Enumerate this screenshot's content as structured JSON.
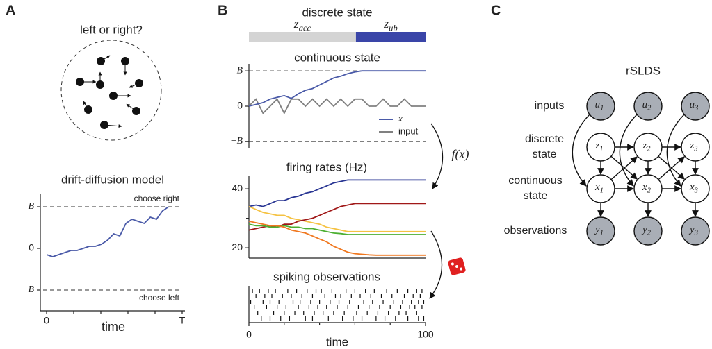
{
  "panel_a": {
    "label": "A",
    "title": "left or right?",
    "chart": {
      "type": "line",
      "title": "drift-diffusion model",
      "xlabel": "time",
      "x": [
        0,
        0.045,
        0.09,
        0.135,
        0.18,
        0.225,
        0.27,
        0.315,
        0.36,
        0.405,
        0.45,
        0.495,
        0.54,
        0.585,
        0.63,
        0.675,
        0.72,
        0.765,
        0.81,
        0.855,
        0.9
      ],
      "values": [
        -0.15,
        -0.2,
        -0.15,
        -0.1,
        -0.05,
        -0.05,
        0.0,
        0.05,
        0.05,
        0.1,
        0.2,
        0.35,
        0.3,
        0.6,
        0.7,
        0.65,
        0.6,
        0.75,
        0.7,
        0.9,
        1.0
      ],
      "color": "#4a5aa8",
      "xlim": [
        0,
        1
      ],
      "ylim": [
        -1.5,
        1.3
      ],
      "xticks": [
        {
          "value": 0,
          "label": "0"
        },
        {
          "value": 1,
          "label": "T"
        }
      ],
      "xminor": [
        0.2,
        0.4,
        0.6,
        0.8
      ],
      "yticks": [
        {
          "value": 1,
          "label": "B"
        },
        0,
        {
          "value": -1,
          "label": "−B"
        }
      ],
      "annotations": [
        {
          "text": "choose right",
          "y": 1
        },
        {
          "text": "choose left",
          "y": -1
        }
      ]
    }
  },
  "panel_b": {
    "label": "B",
    "f_label": "f(x)",
    "discrete": {
      "title": "discrete state",
      "xlim": [
        0,
        100
      ],
      "segments": [
        {
          "label": {
            "base": "z",
            "sub": "acc"
          },
          "start": 0,
          "end": 60.6,
          "color": "#d4d4d4"
        },
        {
          "label": {
            "base": "z",
            "sub": "ub"
          },
          "start": 60.6,
          "end": 100,
          "color": "#3a45a8"
        }
      ]
    },
    "continuous": {
      "type": "line",
      "title": "continuous state",
      "x": [
        0,
        4,
        8,
        12,
        16,
        20,
        24,
        28,
        32,
        36,
        40,
        44,
        48,
        52,
        56,
        60,
        64,
        68,
        72,
        76,
        80,
        84,
        88,
        92,
        96,
        100
      ],
      "xlim": [
        0,
        100
      ],
      "ylim": [
        -1.2,
        1.2
      ],
      "yticks": [
        {
          "value": 1,
          "label": "B"
        },
        0,
        {
          "value": -1,
          "label": "−B"
        }
      ],
      "reference_lines": [
        1,
        -1
      ],
      "legend": "lower right",
      "series": [
        {
          "name": "x",
          "color": "#4a5aa8",
          "values": [
            0,
            0.05,
            0.1,
            0.2,
            0.25,
            0.3,
            0.22,
            0.35,
            0.45,
            0.5,
            0.6,
            0.7,
            0.8,
            0.85,
            0.92,
            0.97,
            1,
            1,
            1,
            1,
            1,
            1,
            1,
            1,
            1,
            1
          ]
        },
        {
          "name": "input",
          "color": "#808080",
          "values": [
            0,
            0.2,
            -0.2,
            0,
            0.2,
            -0.2,
            0.2,
            0.2,
            0,
            0.2,
            0,
            0.2,
            0,
            0.2,
            0,
            0.2,
            0.2,
            0,
            0,
            0.2,
            0,
            0,
            0.2,
            0,
            0,
            0
          ]
        }
      ]
    },
    "firing": {
      "type": "line",
      "title": "firing rates (Hz)",
      "x": [
        0,
        4,
        8,
        12,
        16,
        20,
        24,
        28,
        32,
        36,
        40,
        44,
        48,
        52,
        56,
        60,
        64,
        68,
        72,
        76,
        80,
        84,
        88,
        92,
        96,
        100
      ],
      "xlim": [
        0,
        100
      ],
      "ylim": [
        16.5,
        44.5
      ],
      "yticks": [
        20,
        40
      ],
      "yminor": [
        30
      ],
      "series": [
        {
          "color": "#283593",
          "values": [
            34,
            34.5,
            34,
            35,
            36,
            36,
            37,
            37.5,
            38.5,
            39,
            40,
            41,
            42,
            42.5,
            43,
            43,
            43,
            43,
            43,
            43,
            43,
            43,
            43,
            43,
            43,
            43
          ]
        },
        {
          "color": "#f5c242",
          "values": [
            34,
            33,
            32,
            31.5,
            31,
            31,
            30,
            29.5,
            29,
            28.5,
            28,
            27,
            26.5,
            26,
            25.5,
            25.5,
            25.5,
            25.5,
            25.5,
            25.5,
            25.5,
            25.5,
            25.5,
            25.5,
            25.5,
            25.5
          ]
        },
        {
          "color": "#a01818",
          "values": [
            26,
            26.5,
            27,
            27.5,
            27,
            28,
            28,
            29,
            29.5,
            30,
            31,
            32,
            33,
            34,
            34.5,
            35,
            35,
            35,
            35,
            35,
            35,
            35,
            35,
            35,
            35,
            35
          ]
        },
        {
          "color": "#4caf32",
          "values": [
            28,
            27.5,
            27.5,
            27,
            27,
            27.5,
            27,
            27,
            26.5,
            26.5,
            26,
            25.5,
            25,
            24.8,
            24.5,
            24.5,
            24.5,
            24.5,
            24.5,
            24.5,
            24.5,
            24.5,
            24.5,
            24.5,
            24.5,
            24.5
          ]
        },
        {
          "color": "#f07820",
          "values": [
            29,
            28.5,
            28,
            27.5,
            27.5,
            27,
            26,
            25.5,
            25,
            24,
            23,
            22,
            20.5,
            19.5,
            18.5,
            18,
            17.8,
            17.6,
            17.5,
            17.5,
            17.5,
            17.5,
            17.5,
            17.5,
            17.5,
            17.5
          ]
        }
      ]
    },
    "spikes": {
      "type": "raster",
      "title": "spiking observations",
      "xlabel": "time",
      "xlim": [
        0,
        100
      ],
      "xticks": [
        0,
        100
      ],
      "xminor": [
        20,
        40,
        60,
        80
      ],
      "rows": [
        [
          2,
          6,
          11,
          15,
          22,
          27,
          33,
          38,
          41,
          47,
          55,
          60,
          66,
          71,
          78,
          84,
          90,
          95,
          98
        ],
        [
          4,
          9,
          13,
          19,
          24,
          30,
          36,
          43,
          49,
          52,
          58,
          63,
          69,
          75,
          81,
          88,
          93,
          97
        ],
        [
          1,
          8,
          12,
          17,
          25,
          29,
          35,
          40,
          46,
          51,
          57,
          65,
          70,
          76,
          82,
          87,
          92,
          96,
          99
        ],
        [
          3,
          10,
          16,
          21,
          28,
          34,
          39,
          44,
          50,
          56,
          62,
          68,
          74,
          80,
          86,
          91,
          94,
          98
        ],
        [
          5,
          14,
          20,
          26,
          31,
          37,
          42,
          48,
          54,
          61,
          67,
          73,
          79,
          85,
          89,
          95
        ],
        [
          7,
          12,
          18,
          23,
          32,
          36,
          45,
          53,
          59,
          64,
          72,
          77,
          83,
          90,
          96,
          99
        ]
      ]
    }
  },
  "panel_c": {
    "label": "C",
    "title": "rSLDS",
    "rows": [
      {
        "lines": [
          "inputs"
        ],
        "color": "#a9aeb6",
        "nodes": [
          {
            "base": "u",
            "sub": "1"
          },
          {
            "base": "u",
            "sub": "2"
          },
          {
            "base": "u",
            "sub": "3"
          }
        ]
      },
      {
        "lines": [
          "discrete",
          "state"
        ],
        "color": "#ffffff",
        "nodes": [
          {
            "base": "z",
            "sub": "1"
          },
          {
            "base": "z",
            "sub": "2"
          },
          {
            "base": "z",
            "sub": "3"
          }
        ]
      },
      {
        "lines": [
          "continuous",
          "state"
        ],
        "color": "#ffffff",
        "nodes": [
          {
            "base": "x",
            "sub": "1"
          },
          {
            "base": "x",
            "sub": "2"
          },
          {
            "base": "x",
            "sub": "3"
          }
        ]
      },
      {
        "lines": [
          "observations"
        ],
        "color": "#a9aeb6",
        "nodes": [
          {
            "base": "y",
            "sub": "1"
          },
          {
            "base": "y",
            "sub": "2"
          },
          {
            "base": "y",
            "sub": "3"
          }
        ]
      }
    ]
  }
}
